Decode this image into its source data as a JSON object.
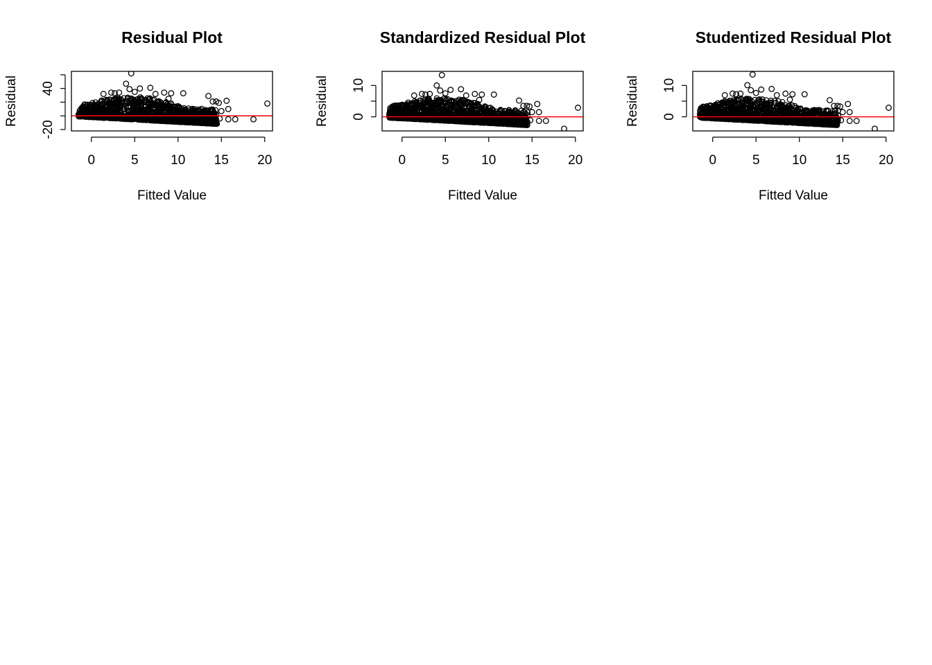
{
  "chart_data": [
    {
      "type": "scatter",
      "title": "Residual Plot",
      "xlabel": "Fitted Value",
      "ylabel": "Residual",
      "xlim": [
        -2.3,
        20.9
      ],
      "ylim": [
        -22,
        65
      ],
      "xticks": [
        0,
        5,
        10,
        15,
        20
      ],
      "yticks": [
        -20,
        0,
        20,
        40,
        60
      ],
      "ytick_labels": [
        "-20",
        "",
        "",
        "40",
        ""
      ],
      "grid": false,
      "legend": "none",
      "point_color": "#000000",
      "reference_line": {
        "y": 0,
        "color": "#ff0000"
      },
      "points": {
        "x": [
          4.6,
          4.0,
          5.6,
          6.8,
          4.4,
          2.7,
          1.4,
          2.3,
          3.2,
          5.0,
          7.4,
          8.4,
          9.2,
          10.6,
          13.5,
          14.0,
          14.4,
          14.7,
          15.0,
          15.8,
          20.3,
          15.6,
          18.7,
          16.6,
          15.8,
          14.8,
          14.2,
          13.6,
          12.9,
          12.1,
          11.7,
          11.2,
          10.8,
          10.3,
          9.8,
          8.9,
          8.1,
          7.7,
          6.6,
          6.1,
          5.4,
          3.6,
          2.1,
          1.2,
          0.6,
          -0.1,
          -1.2,
          9.8,
          3.0,
          8.9
        ],
        "y": [
          62,
          47,
          40,
          41,
          39,
          33,
          32,
          34,
          34,
          35,
          32,
          34,
          33,
          33,
          29,
          21,
          21,
          19,
          7,
          10,
          18,
          22,
          -5,
          -5,
          -5,
          -4,
          -3,
          -2,
          -1,
          2,
          4,
          5,
          8,
          7,
          10,
          12,
          15,
          16,
          18,
          20,
          22,
          21,
          24,
          20,
          9,
          5,
          2,
          4,
          27,
          25
        ]
      },
      "dense_band": {
        "x_from": -1.5,
        "x_to": 14.5,
        "y_low_at_x_from": -1,
        "y_low_at_x_to": -12,
        "y_high": 28
      }
    },
    {
      "type": "scatter",
      "title": "Standardized Residual Plot",
      "xlabel": "Fitted Value",
      "ylabel": "Residual",
      "xlim": [
        -2.3,
        20.9
      ],
      "ylim": [
        -4.5,
        14.5
      ],
      "xticks": [
        0,
        5,
        10,
        15,
        20
      ],
      "yticks": [
        0,
        5,
        10
      ],
      "ytick_labels": [
        "0",
        "",
        "10"
      ],
      "grid": false,
      "legend": "none",
      "point_color": "#000000",
      "reference_line": {
        "y": 0,
        "color": "#ff0000"
      },
      "points": {
        "x": [
          4.6,
          4.0,
          5.6,
          6.8,
          4.4,
          2.7,
          1.4,
          2.3,
          3.2,
          5.0,
          7.4,
          8.4,
          9.2,
          10.6,
          13.5,
          14.0,
          14.4,
          14.7,
          15.0,
          15.8,
          20.3,
          15.6,
          18.7,
          16.6,
          15.8,
          14.8,
          14.2,
          13.6,
          12.9,
          12.1,
          11.7,
          11.2,
          10.8,
          10.3,
          9.8,
          8.9,
          8.1,
          7.7,
          6.6,
          6.1,
          5.4,
          3.6,
          2.1,
          1.2,
          0.6,
          -0.1,
          -1.2,
          9.8,
          3.0,
          8.9
        ],
        "y": [
          13.3,
          10.0,
          8.6,
          8.8,
          8.4,
          7.1,
          6.8,
          7.3,
          7.3,
          7.5,
          6.8,
          7.3,
          7.1,
          7.1,
          5.2,
          3.5,
          3.5,
          3.3,
          1.5,
          1.5,
          2.9,
          4.1,
          -3.8,
          -1.3,
          -1.3,
          -1.1,
          -0.8,
          -0.5,
          -0.2,
          0.4,
          0.9,
          1.1,
          1.7,
          1.5,
          2.1,
          2.6,
          3.2,
          3.4,
          3.9,
          4.3,
          4.7,
          4.5,
          5.1,
          4.3,
          1.9,
          1.1,
          0.4,
          0.9,
          5.8,
          5.4
        ]
      },
      "dense_band": {
        "x_from": -1.5,
        "x_to": 14.5,
        "y_low_at_x_from": -0.3,
        "y_low_at_x_to": -2.7,
        "y_high": 6.0
      }
    },
    {
      "type": "scatter",
      "title": "Studentized Residual Plot",
      "xlabel": "Fitted Value",
      "ylabel": "Residual",
      "xlim": [
        -2.3,
        20.9
      ],
      "ylim": [
        -4.5,
        14.5
      ],
      "xticks": [
        0,
        5,
        10,
        15,
        20
      ],
      "yticks": [
        0,
        5,
        10
      ],
      "ytick_labels": [
        "0",
        "",
        "10"
      ],
      "grid": false,
      "legend": "none",
      "point_color": "#000000",
      "reference_line": {
        "y": 0,
        "color": "#ff0000"
      },
      "points": {
        "x": [
          4.6,
          4.0,
          5.6,
          6.8,
          4.4,
          2.7,
          1.4,
          2.3,
          3.2,
          5.0,
          7.4,
          8.4,
          9.2,
          10.6,
          13.5,
          14.0,
          14.4,
          14.7,
          15.0,
          15.8,
          20.3,
          15.6,
          18.7,
          16.6,
          15.8,
          14.8,
          14.2,
          13.6,
          12.9,
          12.1,
          11.7,
          11.2,
          10.8,
          10.3,
          9.8,
          8.9,
          8.1,
          7.7,
          6.6,
          6.1,
          5.4,
          3.6,
          2.1,
          1.2,
          0.6,
          -0.1,
          -1.2,
          9.8,
          3.0,
          8.9
        ],
        "y": [
          13.5,
          10.1,
          8.7,
          8.9,
          8.5,
          7.2,
          6.9,
          7.4,
          7.4,
          7.6,
          6.9,
          7.4,
          7.2,
          7.2,
          5.3,
          3.5,
          3.5,
          3.3,
          1.5,
          1.5,
          2.9,
          4.1,
          -3.8,
          -1.3,
          -1.3,
          -1.1,
          -0.8,
          -0.5,
          -0.2,
          0.4,
          0.9,
          1.1,
          1.7,
          1.5,
          2.1,
          2.6,
          3.2,
          3.4,
          3.9,
          4.3,
          4.7,
          4.5,
          5.1,
          4.3,
          1.9,
          1.1,
          0.4,
          0.9,
          5.9,
          5.5
        ]
      },
      "dense_band": {
        "x_from": -1.5,
        "x_to": 14.5,
        "y_low_at_x_from": -0.3,
        "y_low_at_x_to": -2.7,
        "y_high": 6.0
      }
    }
  ]
}
